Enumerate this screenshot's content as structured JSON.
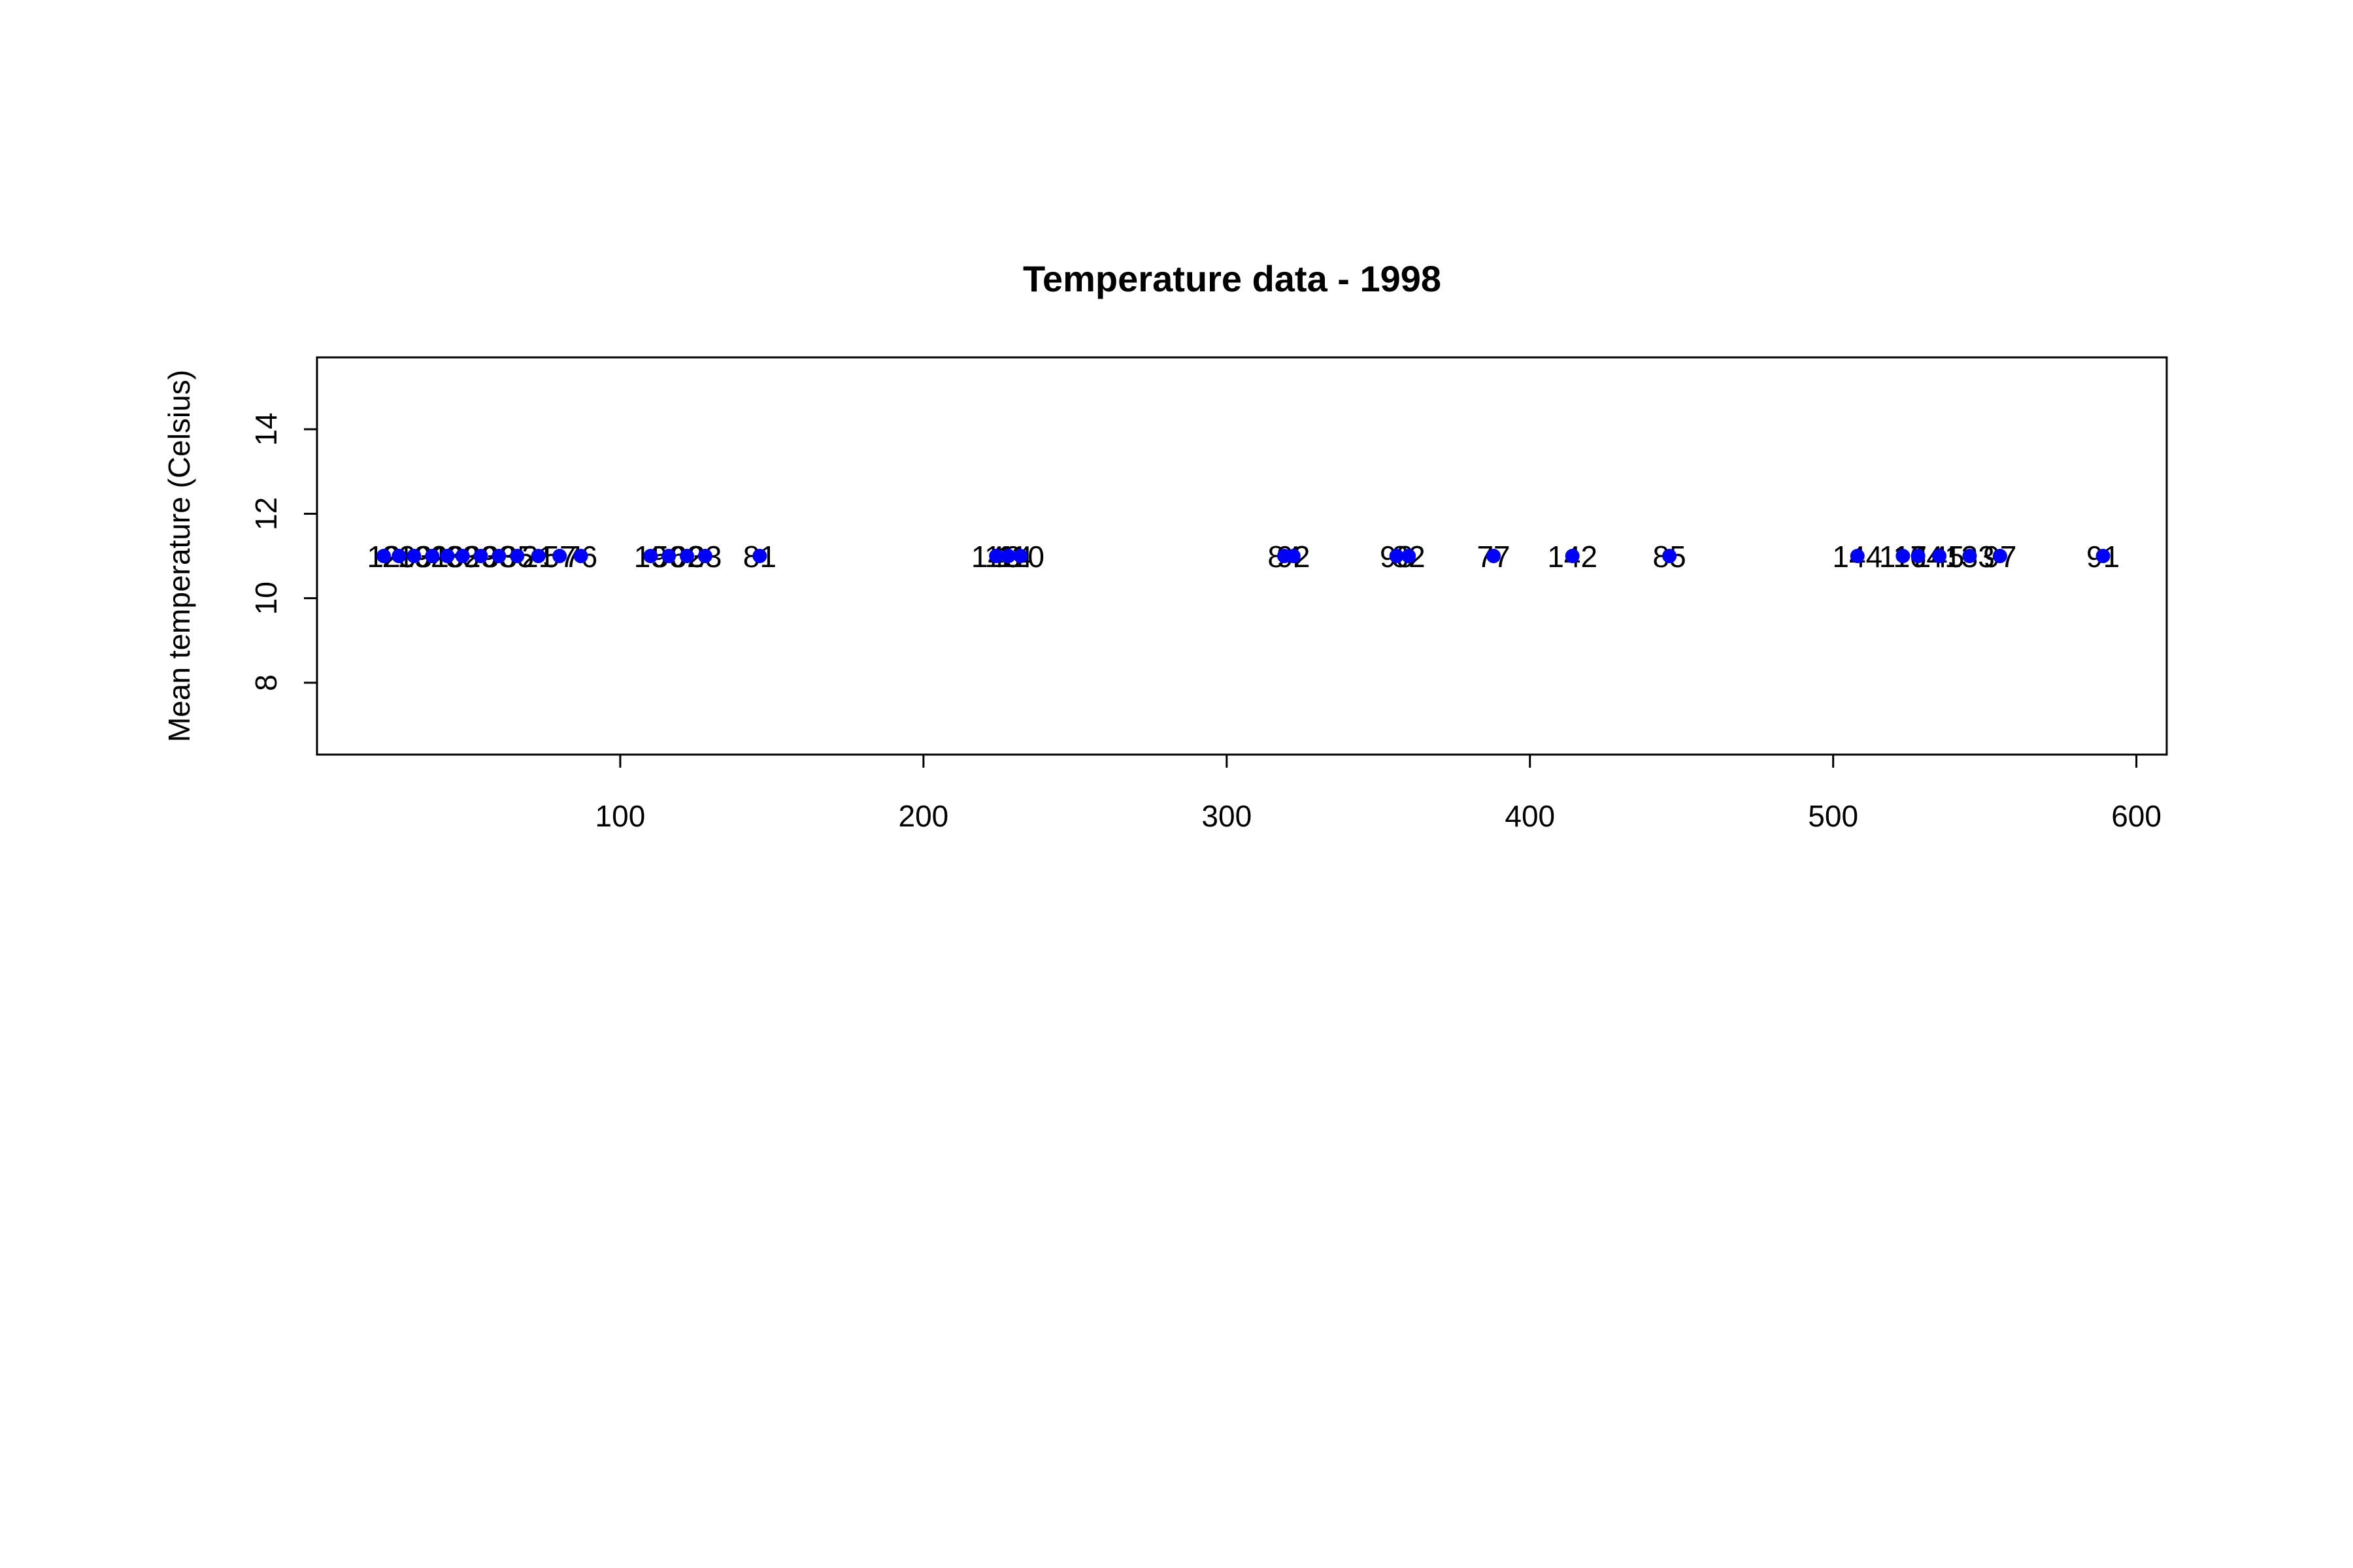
{
  "chart_data": {
    "type": "scatter",
    "title": "Temperature data -  1998",
    "xlabel": "",
    "ylabel": "Mean temperature (Celsius)",
    "xlim": [
      0,
      610
    ],
    "ylim": [
      6.3,
      15.7
    ],
    "x_ticks": [
      100,
      200,
      300,
      400,
      500,
      600
    ],
    "y_ticks": [
      8,
      10,
      12,
      14
    ],
    "grid": false,
    "point_color": "#0000ff",
    "points": [
      {
        "x": 22,
        "y": 11,
        "label": "12"
      },
      {
        "x": 27,
        "y": 11,
        "label": "23"
      },
      {
        "x": 32,
        "y": 11,
        "label": "19"
      },
      {
        "x": 38,
        "y": 11,
        "label": "31"
      },
      {
        "x": 43,
        "y": 11,
        "label": "26"
      },
      {
        "x": 48,
        "y": 11,
        "label": "33"
      },
      {
        "x": 54,
        "y": 11,
        "label": "29"
      },
      {
        "x": 60,
        "y": 11,
        "label": "38"
      },
      {
        "x": 66,
        "y": 11,
        "label": "35"
      },
      {
        "x": 73,
        "y": 11,
        "label": "21"
      },
      {
        "x": 80,
        "y": 11,
        "label": "57"
      },
      {
        "x": 87,
        "y": 11,
        "label": "76"
      },
      {
        "x": 110,
        "y": 11,
        "label": "19"
      },
      {
        "x": 116,
        "y": 11,
        "label": "50"
      },
      {
        "x": 122,
        "y": 11,
        "label": "62"
      },
      {
        "x": 128,
        "y": 11,
        "label": "33"
      },
      {
        "x": 146,
        "y": 11,
        "label": "81"
      },
      {
        "x": 224,
        "y": 11,
        "label": "140"
      },
      {
        "x": 228,
        "y": 11,
        "label": "114"
      },
      {
        "x": 232,
        "y": 11,
        "label": "110"
      },
      {
        "x": 319,
        "y": 11,
        "label": "84"
      },
      {
        "x": 322,
        "y": 11,
        "label": "92"
      },
      {
        "x": 356,
        "y": 11,
        "label": "98"
      },
      {
        "x": 360,
        "y": 11,
        "label": "82"
      },
      {
        "x": 388,
        "y": 11,
        "label": "77"
      },
      {
        "x": 414,
        "y": 11,
        "label": "142"
      },
      {
        "x": 446,
        "y": 11,
        "label": "85"
      },
      {
        "x": 508,
        "y": 11,
        "label": "144"
      },
      {
        "x": 523,
        "y": 11,
        "label": "117"
      },
      {
        "x": 528,
        "y": 11,
        "label": "164"
      },
      {
        "x": 535,
        "y": 11,
        "label": "145"
      },
      {
        "x": 545,
        "y": 11,
        "label": "133"
      },
      {
        "x": 555,
        "y": 11,
        "label": "97"
      },
      {
        "x": 589,
        "y": 11,
        "label": "91"
      }
    ]
  }
}
